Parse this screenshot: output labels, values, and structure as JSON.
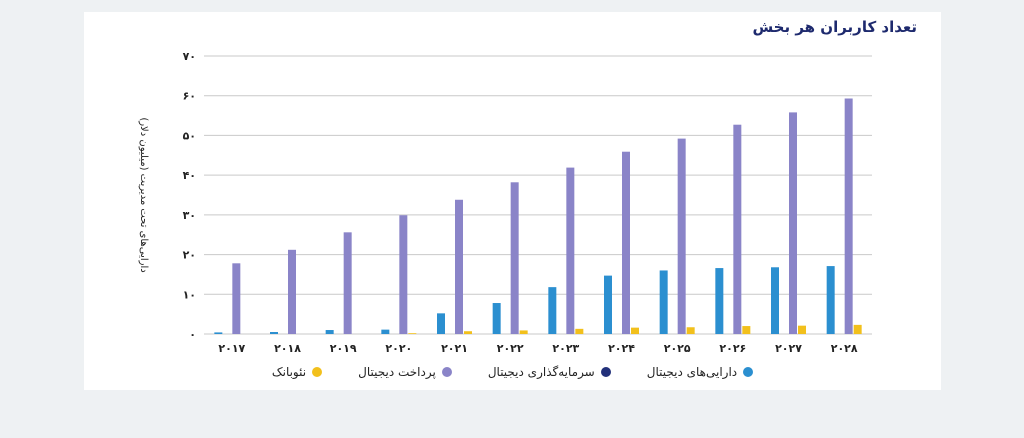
{
  "chart_data": {
    "type": "bar",
    "title": "تعداد کاربران هر بخش",
    "ylabel": "دارایی‌های تحت مدیریت (میلیون دلار)",
    "xlabel": "",
    "ylim": [
      0,
      70
    ],
    "yticks": [
      "۰",
      "۱۰",
      "۲۰",
      "۳۰",
      "۴۰",
      "۵۰",
      "۶۰",
      "۷۰"
    ],
    "categories": [
      "۲۰۱۷",
      "۲۰۱۸",
      "۲۰۱۹",
      "۲۰۲۰",
      "۲۰۲۱",
      "۲۰۲۲",
      "۲۰۲۳",
      "۲۰۲۴",
      "۲۰۲۵",
      "۲۰۲۶",
      "۲۰۲۷",
      "۲۰۲۸"
    ],
    "series": [
      {
        "name": "دارایی‌های دیجیتال",
        "color": "#2b8fd0",
        "values": [
          0.4,
          0.5,
          1.0,
          1.1,
          5.2,
          7.8,
          11.8,
          14.7,
          16.0,
          16.6,
          16.8,
          17.1
        ]
      },
      {
        "name": "سرمایه‌گذاری دیجیتال",
        "color": "#22307a",
        "values": [
          0,
          0,
          0,
          0,
          0,
          0,
          0,
          0,
          0,
          0,
          0,
          0
        ]
      },
      {
        "name": "پرداخت دیجیتال",
        "color": "#8a84c8",
        "values": [
          17.8,
          21.2,
          25.6,
          29.9,
          33.8,
          38.2,
          41.9,
          45.9,
          49.2,
          52.7,
          55.8,
          59.3
        ]
      },
      {
        "name": "نئوبانک",
        "color": "#f2c01c",
        "values": [
          0,
          0,
          0,
          0.2,
          0.7,
          0.9,
          1.3,
          1.6,
          1.7,
          2.0,
          2.1,
          2.3
        ]
      }
    ],
    "grid": true,
    "legend_position": "bottom"
  }
}
